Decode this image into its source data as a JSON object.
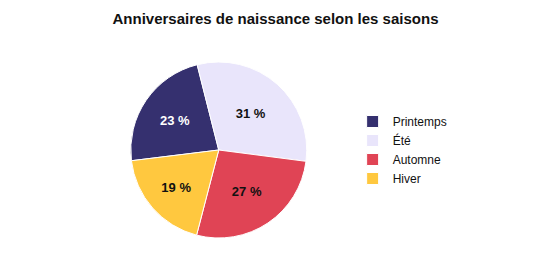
{
  "chart_data": {
    "type": "pie",
    "title": "Anniversaires de naissance selon les saisons",
    "categories": [
      "Printemps",
      "Été",
      "Automne",
      "Hiver"
    ],
    "values": [
      23,
      31,
      27,
      19
    ],
    "value_labels": [
      "23 %",
      "31 %",
      "27 %",
      "19 %"
    ],
    "colors": [
      "#35306f",
      "#e9e5fb",
      "#e04455",
      "#ffc83f"
    ],
    "data_labels": true,
    "legend": "right"
  }
}
